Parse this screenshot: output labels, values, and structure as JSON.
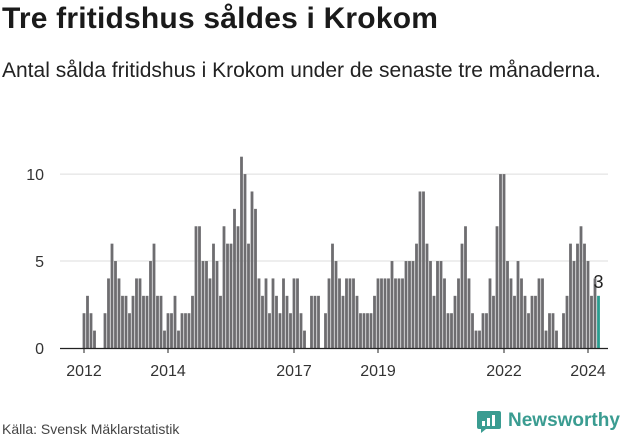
{
  "header": {
    "title": "Tre fritidshus såldes i Krokom",
    "subtitle": "Antal sålda fritidshus i Krokom under de senaste tre månaderna."
  },
  "footer": {
    "source": "Källa: Svensk Mäklarstatistik",
    "brand": "Newsworthy"
  },
  "colors": {
    "bar": "#6e6d70",
    "highlight": "#2a9d8f",
    "grid": "#dddddd",
    "brand": "#3a9c91"
  },
  "chart_data": {
    "type": "bar",
    "start": "2012-01",
    "yticks": [
      0,
      5,
      10
    ],
    "ylim": [
      0,
      11.5
    ],
    "xticks": [
      {
        "label": "2012",
        "month": "2012-01"
      },
      {
        "label": "2014",
        "month": "2014-01"
      },
      {
        "label": "2017",
        "month": "2017-01"
      },
      {
        "label": "2019",
        "month": "2019-01"
      },
      {
        "label": "2022",
        "month": "2022-01"
      },
      {
        "label": "2024",
        "month": "2024-01"
      }
    ],
    "values": [
      2,
      3,
      2,
      1,
      0,
      0,
      2,
      4,
      6,
      5,
      4,
      3,
      3,
      2,
      3,
      4,
      4,
      3,
      3,
      5,
      6,
      3,
      3,
      1,
      2,
      2,
      3,
      1,
      2,
      2,
      2,
      3,
      7,
      7,
      5,
      5,
      4,
      6,
      5,
      3,
      7,
      6,
      6,
      8,
      7,
      11,
      10,
      6,
      9,
      8,
      4,
      3,
      4,
      2,
      4,
      3,
      2,
      4,
      3,
      2,
      4,
      4,
      2,
      1,
      0,
      3,
      3,
      3,
      0,
      2,
      4,
      6,
      5,
      4,
      3,
      4,
      4,
      4,
      3,
      2,
      2,
      2,
      2,
      3,
      4,
      4,
      4,
      4,
      5,
      4,
      4,
      4,
      5,
      5,
      5,
      6,
      9,
      9,
      6,
      5,
      3,
      5,
      5,
      4,
      2,
      2,
      3,
      4,
      6,
      7,
      4,
      2,
      1,
      1,
      2,
      2,
      4,
      3,
      7,
      10,
      10,
      5,
      4,
      3,
      5,
      4,
      3,
      2,
      3,
      3,
      4,
      4,
      1,
      2,
      2,
      1,
      0,
      2,
      3,
      6,
      5,
      6,
      7,
      6,
      5,
      3,
      4,
      3
    ],
    "highlight_label": "3"
  }
}
